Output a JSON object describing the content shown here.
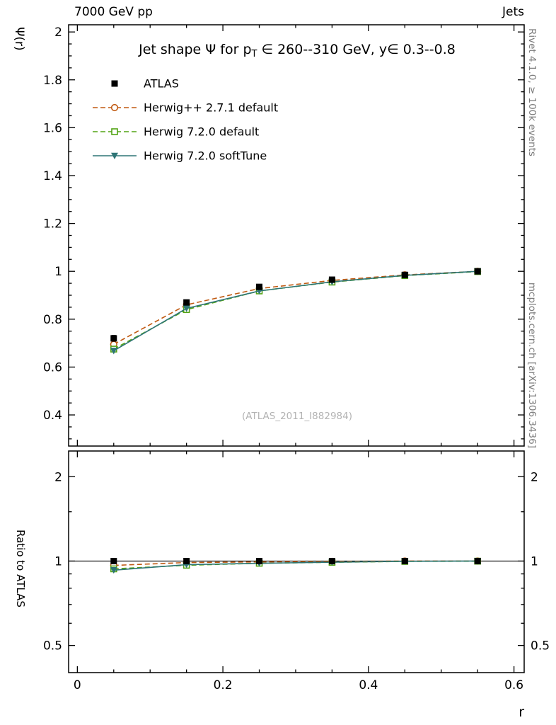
{
  "header": {
    "left": "7000 GeV pp",
    "right": "Jets"
  },
  "title": {
    "pre": "Jet shape Ψ for p",
    "sub": "T",
    "post": " ∈ 260--310 GeV, y∈ 0.3--0.8"
  },
  "axis_labels": {
    "main_y": "Ψ(r)",
    "ratio_y": "Ratio to ATLAS",
    "x": "r"
  },
  "side_notes": {
    "right_top": "Rivet 4.1.0, ≥ 100k events",
    "right_bottom": "mcplots.cern.ch [arXiv:1306.3436]"
  },
  "watermark": "(ATLAS_2011_I882984)",
  "legend": [
    {
      "label": "ATLAS",
      "marker": "square-filled",
      "line": "none",
      "color": "#000000"
    },
    {
      "label": "Herwig++ 2.7.1 default",
      "marker": "circle-open",
      "line": "dashed",
      "color": "#c05a12"
    },
    {
      "label": "Herwig 7.2.0 default",
      "marker": "square-open",
      "line": "dashed",
      "color": "#52a314"
    },
    {
      "label": "Herwig 7.2.0 softTune",
      "marker": "triangle-down-filled",
      "line": "solid",
      "color": "#2e7576"
    }
  ],
  "chart_data": {
    "type": "line",
    "title": "Jet shape Ψ for pT ∈ 260--310 GeV, y ∈ 0.3--0.8",
    "xlabel": "r",
    "x": [
      0.05,
      0.15,
      0.25,
      0.35,
      0.45,
      0.55
    ],
    "xlim": [
      -0.012,
      0.614
    ],
    "xticks": [
      {
        "v": 0,
        "label": "0"
      },
      {
        "v": 0.2,
        "label": "0.2"
      },
      {
        "v": 0.4,
        "label": "0.4"
      },
      {
        "v": 0.6,
        "label": "0.6"
      }
    ],
    "xminor_step": 0.05,
    "main": {
      "ylabel": "Ψ(r)",
      "scale": "linear",
      "ylim": [
        0.27,
        2.03
      ],
      "yminor_step": 0.05,
      "yticks": [
        {
          "v": 0.4,
          "label": "0.4"
        },
        {
          "v": 0.6,
          "label": "0.6"
        },
        {
          "v": 0.8,
          "label": "0.8"
        },
        {
          "v": 1.0,
          "label": "1"
        },
        {
          "v": 1.2,
          "label": "1.2"
        },
        {
          "v": 1.4,
          "label": "1.4"
        },
        {
          "v": 1.6,
          "label": "1.6"
        },
        {
          "v": 1.8,
          "label": "1.8"
        },
        {
          "v": 2.0,
          "label": "2"
        }
      ],
      "series": [
        {
          "name": "ATLAS",
          "values": [
            0.72,
            0.87,
            0.935,
            0.965,
            0.985,
            1.0
          ],
          "errors": [
            0.012,
            0.008,
            0.006,
            0.005,
            0.004,
            0.003
          ]
        },
        {
          "name": "Herwig++ 2.7.1 default",
          "values": [
            0.695,
            0.86,
            0.928,
            0.962,
            0.985,
            1.0
          ]
        },
        {
          "name": "Herwig 7.2.0 default",
          "values": [
            0.675,
            0.84,
            0.918,
            0.955,
            0.982,
            0.999
          ]
        },
        {
          "name": "Herwig 7.2.0 softTune",
          "values": [
            0.668,
            0.845,
            0.918,
            0.956,
            0.983,
            1.0
          ]
        }
      ]
    },
    "ratio": {
      "ylabel": "Ratio to ATLAS",
      "scale": "log",
      "ylim": [
        0.4,
        2.47
      ],
      "yticks": [
        {
          "v": 0.5,
          "label": "0.5"
        },
        {
          "v": 1.0,
          "label": "1"
        },
        {
          "v": 2.0,
          "label": "2"
        }
      ],
      "yminors": [
        0.6,
        0.7,
        0.8,
        0.9,
        1.5
      ],
      "series": [
        {
          "name": "ATLAS",
          "values": [
            1.0,
            1.0,
            1.0,
            1.0,
            1.0,
            1.0
          ],
          "errors": [
            0.017,
            0.009,
            0.006,
            0.005,
            0.004,
            0.003
          ]
        },
        {
          "name": "Herwig++ 2.7.1 default",
          "values": [
            0.965,
            0.988,
            0.993,
            0.997,
            1.0,
            1.0
          ]
        },
        {
          "name": "Herwig 7.2.0 default",
          "values": [
            0.938,
            0.966,
            0.982,
            0.99,
            0.997,
            0.999
          ]
        },
        {
          "name": "Herwig 7.2.0 softTune",
          "values": [
            0.928,
            0.971,
            0.982,
            0.991,
            0.998,
            1.0
          ]
        }
      ]
    }
  }
}
